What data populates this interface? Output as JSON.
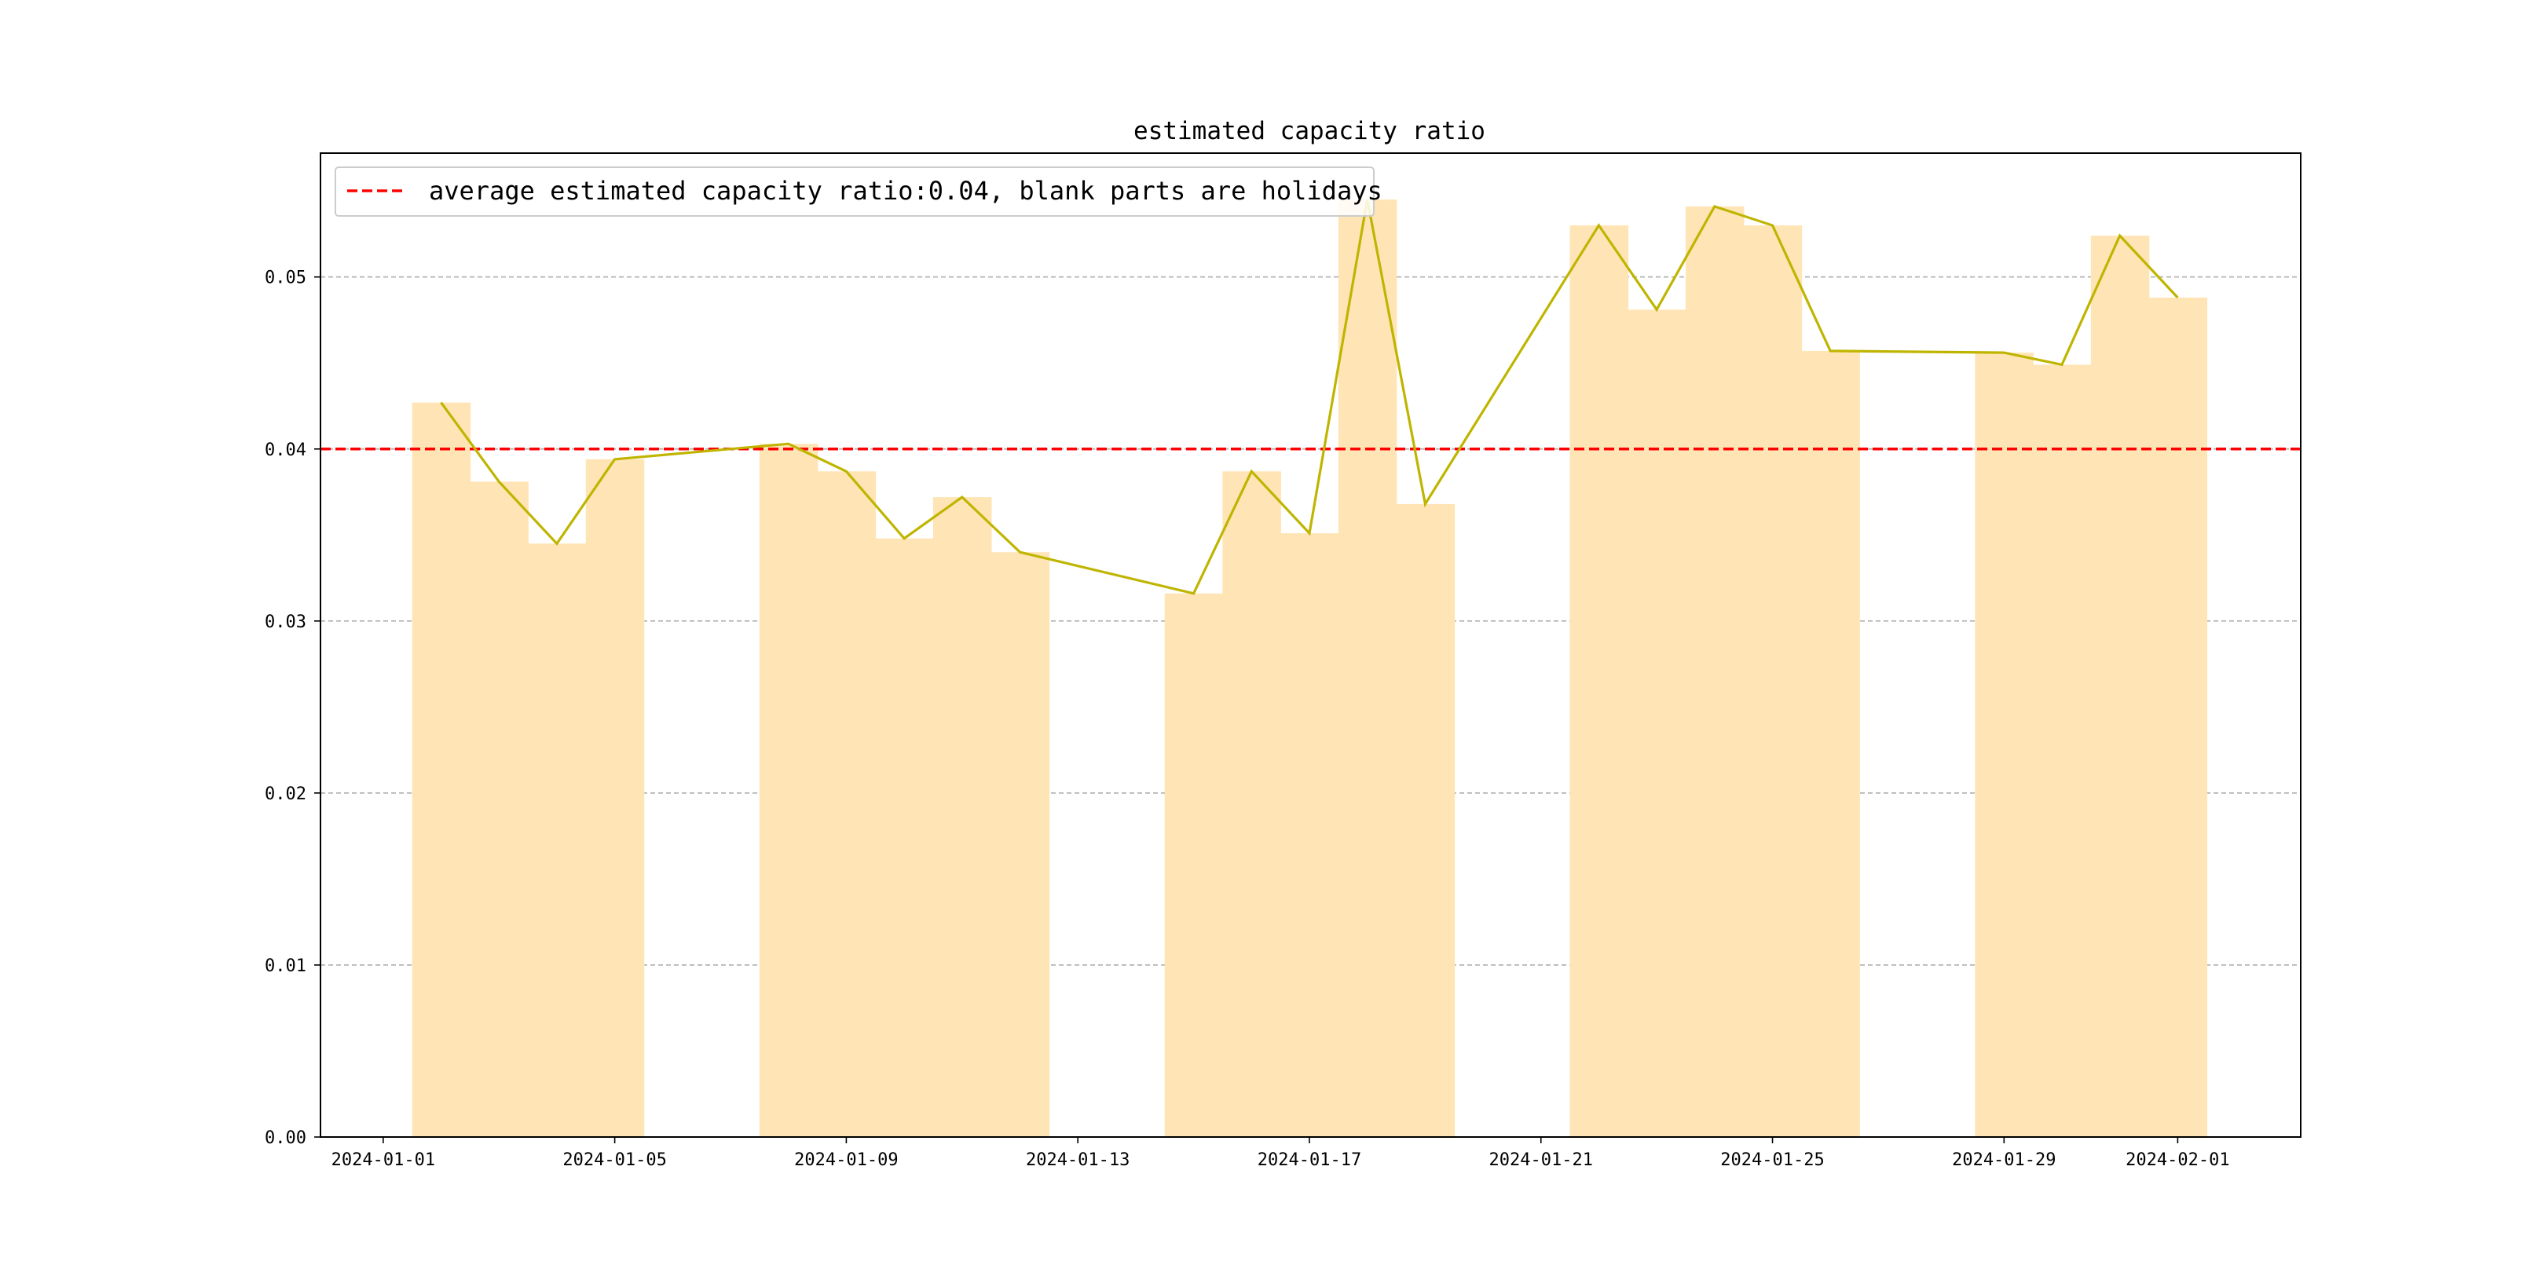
{
  "chart_data": {
    "type": "bar",
    "title": "estimated capacity ratio",
    "xlabel": "",
    "ylabel": "",
    "x_start": "2024-01-01",
    "xlim": [
      "2023-12-30T22:00",
      "2024-02-03T03:00"
    ],
    "ylim": [
      0,
      0.0572
    ],
    "grid": "horizontal dashed",
    "x_ticks": [
      "2024-01-01",
      "2024-01-05",
      "2024-01-09",
      "2024-01-13",
      "2024-01-17",
      "2024-01-21",
      "2024-01-25",
      "2024-01-29",
      "2024-02-01"
    ],
    "y_ticks": [
      "0.00",
      "0.01",
      "0.02",
      "0.03",
      "0.04",
      "0.05"
    ],
    "dates": [
      "2024-01-02",
      "2024-01-03",
      "2024-01-04",
      "2024-01-05",
      "2024-01-08",
      "2024-01-09",
      "2024-01-10",
      "2024-01-11",
      "2024-01-12",
      "2024-01-15",
      "2024-01-16",
      "2024-01-17",
      "2024-01-18",
      "2024-01-19",
      "2024-01-22",
      "2024-01-23",
      "2024-01-24",
      "2024-01-25",
      "2024-01-26",
      "2024-01-29",
      "2024-01-30",
      "2024-01-31",
      "2024-02-01"
    ],
    "values": [
      0.0427,
      0.0381,
      0.0345,
      0.0394,
      0.0403,
      0.0387,
      0.0348,
      0.0372,
      0.034,
      0.0316,
      0.0387,
      0.0351,
      0.0545,
      0.0368,
      0.053,
      0.0481,
      0.0541,
      0.053,
      0.0457,
      0.0456,
      0.0449,
      0.0524,
      0.0488
    ],
    "average_line": {
      "value": 0.04,
      "label": "average estimated capacity ratio:0.04, blank parts are holidays",
      "style": "dashed",
      "color": "#ff0000"
    },
    "legend_position": "upper-left",
    "colors": {
      "bar": "#ffe4b5",
      "line": "#bfb500",
      "grid": "#b0b0b0",
      "average": "#ff0000"
    }
  }
}
